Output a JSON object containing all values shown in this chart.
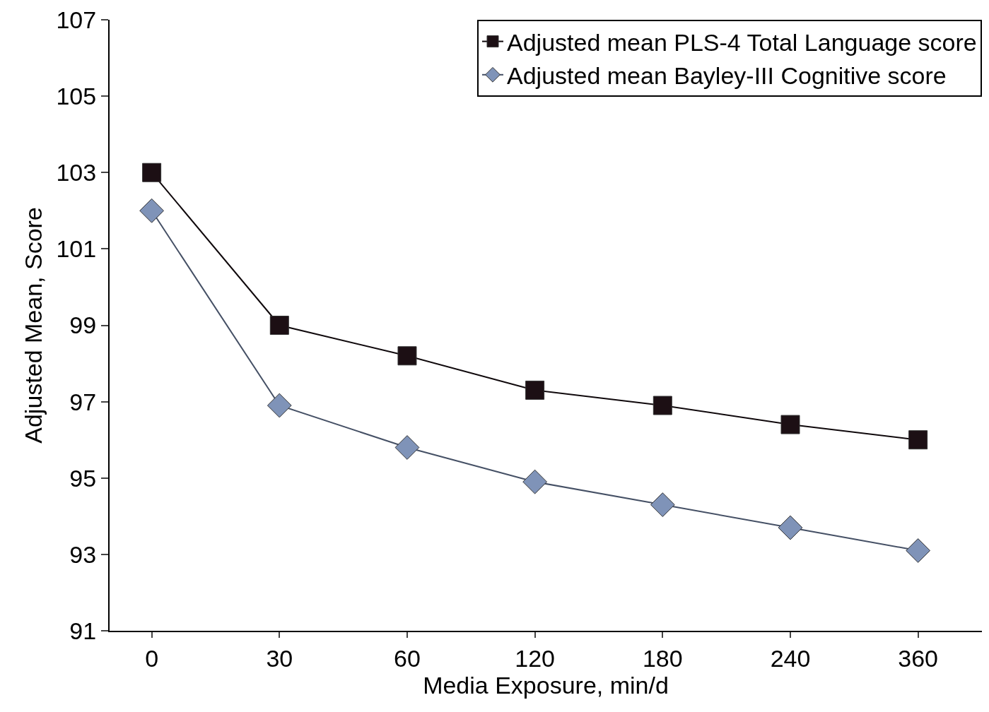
{
  "chart_data": {
    "type": "line",
    "xlabel": "Media Exposure, min/d",
    "ylabel": "Adjusted Mean, Score",
    "categories": [
      "0",
      "30",
      "60",
      "120",
      "180",
      "240",
      "360"
    ],
    "ylim": [
      91,
      107
    ],
    "yticks": [
      91,
      93,
      95,
      97,
      99,
      101,
      103,
      105,
      107
    ],
    "legend": "top right",
    "line_style": "solid",
    "series": [
      {
        "name": "Adjusted mean PLS-4 Total Language score",
        "color": "#1c0f14",
        "marker": "square",
        "values": [
          103.0,
          99.0,
          98.2,
          97.3,
          96.9,
          96.4,
          96.0
        ]
      },
      {
        "name": "Adjusted mean Bayley-III Cognitive score",
        "color": "#7f93b8",
        "marker": "diamond",
        "values": [
          102.0,
          96.9,
          95.8,
          94.9,
          94.3,
          93.7,
          93.1
        ]
      }
    ]
  }
}
